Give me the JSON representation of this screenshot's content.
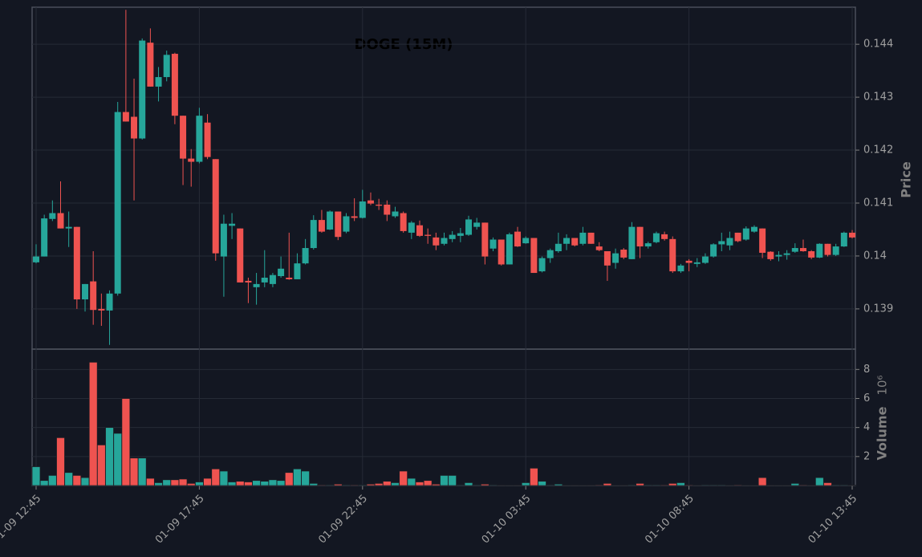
{
  "chart_data": {
    "type": "candlestick",
    "title": "DOGE (15M)",
    "x": [
      "01-09 12:45",
      null,
      null,
      null,
      null,
      null,
      null,
      null,
      null,
      null,
      null,
      null,
      null,
      null,
      null,
      null,
      null,
      null,
      null,
      null,
      "01-09 17:45",
      null,
      null,
      null,
      null,
      null,
      null,
      null,
      null,
      null,
      null,
      null,
      null,
      null,
      null,
      null,
      null,
      null,
      null,
      null,
      "01-09 22:45",
      null,
      null,
      null,
      null,
      null,
      null,
      null,
      null,
      null,
      null,
      null,
      null,
      null,
      null,
      null,
      null,
      null,
      null,
      null,
      "01-10 03:45",
      null,
      null,
      null,
      null,
      null,
      null,
      null,
      null,
      null,
      null,
      null,
      null,
      null,
      null,
      null,
      null,
      null,
      null,
      null,
      "01-10 08:45",
      null,
      null,
      null,
      null,
      null,
      null,
      null,
      null,
      null,
      null,
      null,
      null,
      null,
      null,
      null,
      null,
      null,
      null,
      null,
      "01-10 13:45"
    ],
    "open": [
      0.13988,
      0.13999,
      0.1407,
      0.14081,
      0.14052,
      0.14055,
      0.13918,
      0.13952,
      0.139,
      0.13897,
      0.13929,
      0.14272,
      0.14263,
      0.14222,
      0.14403,
      0.1432,
      0.14338,
      0.14382,
      0.14265,
      0.14184,
      0.14178,
      0.14252,
      0.14183,
      0.13999,
      0.14057,
      0.14052,
      0.13953,
      0.13941,
      0.1395,
      0.13947,
      0.13962,
      0.13959,
      0.13956,
      0.13986,
      0.14015,
      0.14068,
      0.1405,
      0.14084,
      0.14046,
      0.14075,
      0.14072,
      0.14105,
      0.14097,
      0.14097,
      0.14075,
      0.14081,
      0.14044,
      0.14058,
      0.1404,
      0.14035,
      0.14023,
      0.14032,
      0.14038,
      0.1404,
      0.14055,
      0.14063,
      0.14014,
      0.14031,
      0.13984,
      0.14046,
      0.14024,
      0.14034,
      0.13971,
      0.13996,
      0.14009,
      0.14023,
      0.14034,
      0.14023,
      0.14044,
      0.14018,
      0.14009,
      0.13987,
      0.14012,
      0.13994,
      0.14055,
      0.14018,
      0.14026,
      0.14041,
      0.14032,
      0.13971,
      0.13991,
      0.13985,
      0.13987,
      0.13999,
      0.14022,
      0.1402,
      0.14044,
      0.14031,
      0.14046,
      0.14052,
      0.14008,
      0.13999,
      0.14002,
      0.14008,
      0.14015,
      0.14009,
      0.13997,
      0.14023,
      0.14002,
      0.14018,
      0.14044
    ],
    "high": [
      0.14022,
      0.14078,
      0.14105,
      0.14141,
      0.14084,
      0.14055,
      0.13947,
      0.14009,
      0.13929,
      0.13935,
      0.14291,
      0.14465,
      0.14335,
      0.14411,
      0.1443,
      0.14357,
      0.14388,
      0.14384,
      0.14265,
      0.14202,
      0.1428,
      0.14268,
      0.14183,
      0.14078,
      0.14081,
      0.14052,
      0.13959,
      0.13968,
      0.14011,
      0.13968,
      0.13999,
      0.14044,
      0.14005,
      0.14032,
      0.14077,
      0.14087,
      0.14086,
      0.14084,
      0.14081,
      0.14109,
      0.14125,
      0.1412,
      0.14108,
      0.14105,
      0.14093,
      0.14084,
      0.14066,
      0.14067,
      0.14052,
      0.14044,
      0.14044,
      0.14047,
      0.14053,
      0.14076,
      0.14072,
      0.14063,
      0.14035,
      0.14031,
      0.14044,
      0.14055,
      0.14037,
      0.14034,
      0.13999,
      0.14014,
      0.14044,
      0.14041,
      0.14034,
      0.14055,
      0.14044,
      0.14026,
      0.14009,
      0.14014,
      0.14015,
      0.14064,
      0.14055,
      0.14027,
      0.14046,
      0.14046,
      0.14037,
      0.13985,
      0.13994,
      0.13996,
      0.14005,
      0.14024,
      0.14044,
      0.14046,
      0.14044,
      0.14056,
      0.14058,
      0.14052,
      0.14009,
      0.14009,
      0.14011,
      0.14024,
      0.14031,
      0.14011,
      0.14024,
      0.14023,
      0.14023,
      0.14046,
      0.14049
    ],
    "low": [
      0.13986,
      0.13999,
      0.14066,
      0.14052,
      0.14017,
      0.139,
      0.13895,
      0.1387,
      0.13868,
      0.13832,
      0.13925,
      0.14254,
      0.14105,
      0.1422,
      0.1432,
      0.14292,
      0.1433,
      0.14249,
      0.14134,
      0.14131,
      0.14175,
      0.14183,
      0.13991,
      0.13923,
      0.14032,
      0.1395,
      0.13911,
      0.13908,
      0.13941,
      0.13941,
      0.13959,
      0.13955,
      0.13956,
      0.13984,
      0.14012,
      0.14044,
      0.14049,
      0.1403,
      0.14043,
      0.14066,
      0.14071,
      0.14096,
      0.14087,
      0.14066,
      0.14072,
      0.14044,
      0.14032,
      0.14036,
      0.14023,
      0.14011,
      0.1402,
      0.14026,
      0.14026,
      0.14038,
      0.1405,
      0.13984,
      0.14009,
      0.13982,
      0.13984,
      0.14017,
      0.14023,
      0.13968,
      0.13969,
      0.13987,
      0.14006,
      0.14011,
      0.14018,
      0.1402,
      0.14023,
      0.14009,
      0.13953,
      0.13976,
      0.13994,
      0.13994,
      0.13996,
      0.14014,
      0.14024,
      0.14029,
      0.13968,
      0.13968,
      0.13971,
      0.13979,
      0.13985,
      0.13997,
      0.14009,
      0.14011,
      0.14026,
      0.14029,
      0.14044,
      0.13996,
      0.13991,
      0.1399,
      0.13993,
      0.14006,
      0.14008,
      0.13994,
      0.13996,
      0.13999,
      0.14,
      0.14017,
      0.14033
    ],
    "close": [
      0.13999,
      0.14071,
      0.14081,
      0.14052,
      0.14055,
      0.13918,
      0.13947,
      0.13898,
      0.13897,
      0.13929,
      0.14272,
      0.14254,
      0.14222,
      0.14407,
      0.1432,
      0.14338,
      0.1438,
      0.14265,
      0.14184,
      0.14178,
      0.14265,
      0.14187,
      0.14005,
      0.14061,
      0.14061,
      0.1395,
      0.1395,
      0.13947,
      0.13959,
      0.13964,
      0.13976,
      0.13956,
      0.13986,
      0.14015,
      0.14068,
      0.14046,
      0.14084,
      0.14036,
      0.14075,
      0.14072,
      0.14103,
      0.14099,
      0.14095,
      0.14078,
      0.14084,
      0.14047,
      0.14063,
      0.14038,
      0.14038,
      0.1402,
      0.14034,
      0.1404,
      0.14043,
      0.14069,
      0.14063,
      0.13999,
      0.14031,
      0.13984,
      0.14041,
      0.14018,
      0.14034,
      0.13968,
      0.13996,
      0.14011,
      0.14023,
      0.14034,
      0.1402,
      0.14044,
      0.14023,
      0.14011,
      0.13982,
      0.14005,
      0.13997,
      0.14055,
      0.14018,
      0.14024,
      0.14043,
      0.14032,
      0.13971,
      0.13982,
      0.13987,
      0.13988,
      0.13999,
      0.14022,
      0.14028,
      0.14034,
      0.14028,
      0.14052,
      0.14055,
      0.14006,
      0.13994,
      0.14002,
      0.14005,
      0.14015,
      0.14009,
      0.13997,
      0.14023,
      0.14002,
      0.14018,
      0.14044,
      0.14035
    ],
    "volume": [
      1.3,
      0.35,
      0.7,
      3.3,
      0.9,
      0.7,
      0.55,
      8.5,
      2.8,
      4.0,
      3.6,
      6.0,
      1.9,
      1.9,
      0.5,
      0.2,
      0.4,
      0.4,
      0.45,
      0.15,
      0.25,
      0.5,
      1.15,
      1.0,
      0.25,
      0.3,
      0.25,
      0.35,
      0.3,
      0.4,
      0.35,
      0.9,
      1.15,
      1.0,
      0.15,
      0.05,
      0.05,
      0.1,
      0.05,
      0.05,
      0.05,
      0.1,
      0.15,
      0.3,
      0.2,
      1.0,
      0.5,
      0.25,
      0.35,
      0.1,
      0.7,
      0.7,
      0.05,
      0.2,
      0.05,
      0.1,
      0.05,
      0.03,
      0.03,
      0.03,
      0.2,
      1.2,
      0.3,
      0.05,
      0.1,
      0.03,
      0.03,
      0.03,
      0.03,
      0.05,
      0.15,
      0.03,
      0.03,
      0.05,
      0.15,
      0.05,
      0.05,
      0.05,
      0.15,
      0.2,
      0.05,
      0.03,
      0.05,
      0.05,
      0.05,
      0.03,
      0.05,
      0.03,
      0.03,
      0.55,
      0.03,
      0.03,
      0.03,
      0.15,
      0.05,
      0.03,
      0.55,
      0.2,
      0.05,
      0.05,
      0.03
    ],
    "up_color": "#26a69a",
    "down_color": "#ef5350",
    "ylabel": "Price",
    "ylim": [
      0.13824,
      0.1447
    ],
    "yticks": [
      0.139,
      0.14,
      0.141,
      0.142,
      0.143,
      0.144
    ],
    "volume_label": "Volume",
    "volume_scale_label": "10⁶",
    "volume_lim": [
      0,
      9.4
    ],
    "volume_ticks": [
      2,
      4,
      6,
      8
    ],
    "grid": true
  }
}
